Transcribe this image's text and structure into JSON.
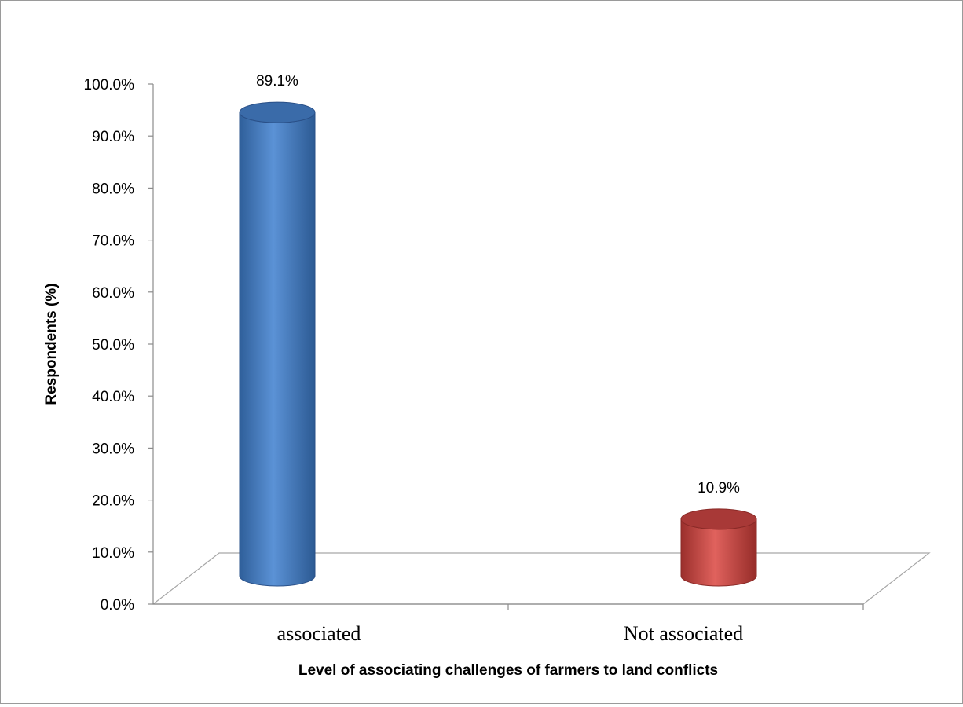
{
  "chart_data": {
    "type": "bar",
    "style": "3d-cylinder",
    "categories": [
      "associated",
      "Not associated"
    ],
    "values": [
      89.1,
      10.9
    ],
    "data_labels": [
      "89.1%",
      "10.9%"
    ],
    "series_colors": [
      "#4f81bd",
      "#c0504d"
    ],
    "ylabel": "Respondents (%)",
    "xlabel": "Level of associating challenges of farmers to land conflicts",
    "ylim": [
      0,
      100
    ],
    "ytick_labels": [
      "0.0%",
      "10.0%",
      "20.0%",
      "30.0%",
      "40.0%",
      "50.0%",
      "60.0%",
      "70.0%",
      "80.0%",
      "90.0%",
      "100.0%"
    ],
    "grid": false,
    "legend": "none"
  }
}
